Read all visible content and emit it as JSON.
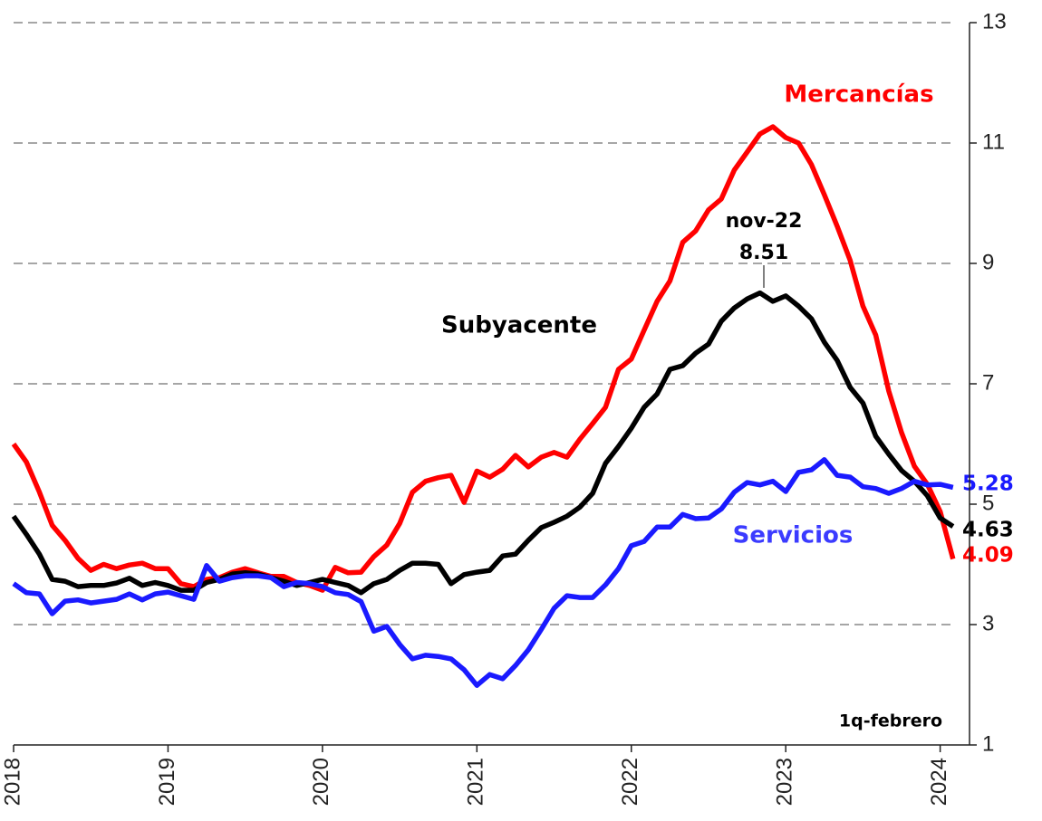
{
  "chart_data": {
    "type": "line",
    "x": [
      2018,
      2018.083,
      2018.167,
      2018.25,
      2018.333,
      2018.417,
      2018.5,
      2018.583,
      2018.667,
      2018.75,
      2018.833,
      2018.917,
      2019,
      2019.083,
      2019.167,
      2019.25,
      2019.333,
      2019.417,
      2019.5,
      2019.583,
      2019.667,
      2019.75,
      2019.833,
      2019.917,
      2020,
      2020.083,
      2020.167,
      2020.25,
      2020.333,
      2020.417,
      2020.5,
      2020.583,
      2020.667,
      2020.75,
      2020.833,
      2020.917,
      2021,
      2021.083,
      2021.167,
      2021.25,
      2021.333,
      2021.417,
      2021.5,
      2021.583,
      2021.667,
      2021.75,
      2021.833,
      2021.917,
      2022,
      2022.083,
      2022.167,
      2022.25,
      2022.333,
      2022.417,
      2022.5,
      2022.583,
      2022.667,
      2022.75,
      2022.833,
      2022.917,
      2023,
      2023.083,
      2023.167,
      2023.25,
      2023.333,
      2023.417,
      2023.5,
      2023.583,
      2023.667,
      2023.75,
      2023.833,
      2023.917,
      2024,
      2024.083
    ],
    "series": [
      {
        "name": "Mercancías",
        "color": "#ff0000",
        "values": [
          6.0,
          5.7,
          5.2,
          4.65,
          4.4,
          4.1,
          3.9,
          4.0,
          3.93,
          3.99,
          4.02,
          3.93,
          3.93,
          3.68,
          3.63,
          3.75,
          3.78,
          3.87,
          3.93,
          3.86,
          3.8,
          3.8,
          3.7,
          3.65,
          3.57,
          3.95,
          3.86,
          3.87,
          4.13,
          4.32,
          4.68,
          5.2,
          5.38,
          5.44,
          5.48,
          5.03,
          5.55,
          5.45,
          5.58,
          5.81,
          5.62,
          5.78,
          5.86,
          5.78,
          6.08,
          6.34,
          6.61,
          7.24,
          7.41,
          7.89,
          8.37,
          8.71,
          9.35,
          9.54,
          9.89,
          10.07,
          10.55,
          10.85,
          11.15,
          11.27,
          11.09,
          11.0,
          10.64,
          10.14,
          9.62,
          9.05,
          8.29,
          7.81,
          6.88,
          6.19,
          5.63,
          5.33,
          4.88,
          4.09
        ]
      },
      {
        "name": "Subyacente",
        "color": "#000000",
        "values": [
          4.8,
          4.5,
          4.17,
          3.75,
          3.72,
          3.63,
          3.65,
          3.65,
          3.69,
          3.77,
          3.65,
          3.7,
          3.65,
          3.57,
          3.57,
          3.7,
          3.75,
          3.84,
          3.86,
          3.84,
          3.78,
          3.72,
          3.65,
          3.7,
          3.75,
          3.7,
          3.65,
          3.53,
          3.68,
          3.75,
          3.9,
          4.02,
          4.02,
          4.0,
          3.68,
          3.83,
          3.87,
          3.9,
          4.14,
          4.17,
          4.4,
          4.61,
          4.7,
          4.8,
          4.95,
          5.18,
          5.68,
          5.96,
          6.26,
          6.61,
          6.83,
          7.24,
          7.3,
          7.51,
          7.66,
          8.04,
          8.26,
          8.41,
          8.51,
          8.37,
          8.46,
          8.29,
          8.08,
          7.69,
          7.39,
          6.94,
          6.68,
          6.13,
          5.83,
          5.56,
          5.38,
          5.14,
          4.77,
          4.63
        ]
      },
      {
        "name": "Servicios",
        "color": "#1a1aff",
        "values": [
          3.68,
          3.53,
          3.51,
          3.18,
          3.39,
          3.41,
          3.36,
          3.39,
          3.42,
          3.51,
          3.41,
          3.51,
          3.54,
          3.48,
          3.42,
          3.98,
          3.72,
          3.78,
          3.81,
          3.81,
          3.78,
          3.63,
          3.7,
          3.68,
          3.63,
          3.53,
          3.5,
          3.38,
          2.89,
          2.97,
          2.67,
          2.43,
          2.49,
          2.47,
          2.43,
          2.25,
          1.99,
          2.17,
          2.1,
          2.32,
          2.58,
          2.92,
          3.27,
          3.48,
          3.45,
          3.45,
          3.66,
          3.93,
          4.31,
          4.38,
          4.62,
          4.62,
          4.83,
          4.76,
          4.77,
          4.92,
          5.2,
          5.36,
          5.32,
          5.38,
          5.21,
          5.53,
          5.57,
          5.74,
          5.48,
          5.45,
          5.29,
          5.26,
          5.18,
          5.26,
          5.38,
          5.32,
          5.33,
          5.28
        ]
      }
    ],
    "peak_label": "nov-22",
    "note": "1q-febrero",
    "xlim": [
      2018,
      2024.19
    ],
    "xticks": [
      2018,
      2019,
      2020,
      2021,
      2022,
      2023,
      2024
    ],
    "ylim": [
      1,
      13
    ],
    "yticks": [
      1,
      3,
      5,
      7,
      9,
      11,
      13
    ],
    "grid": true
  }
}
